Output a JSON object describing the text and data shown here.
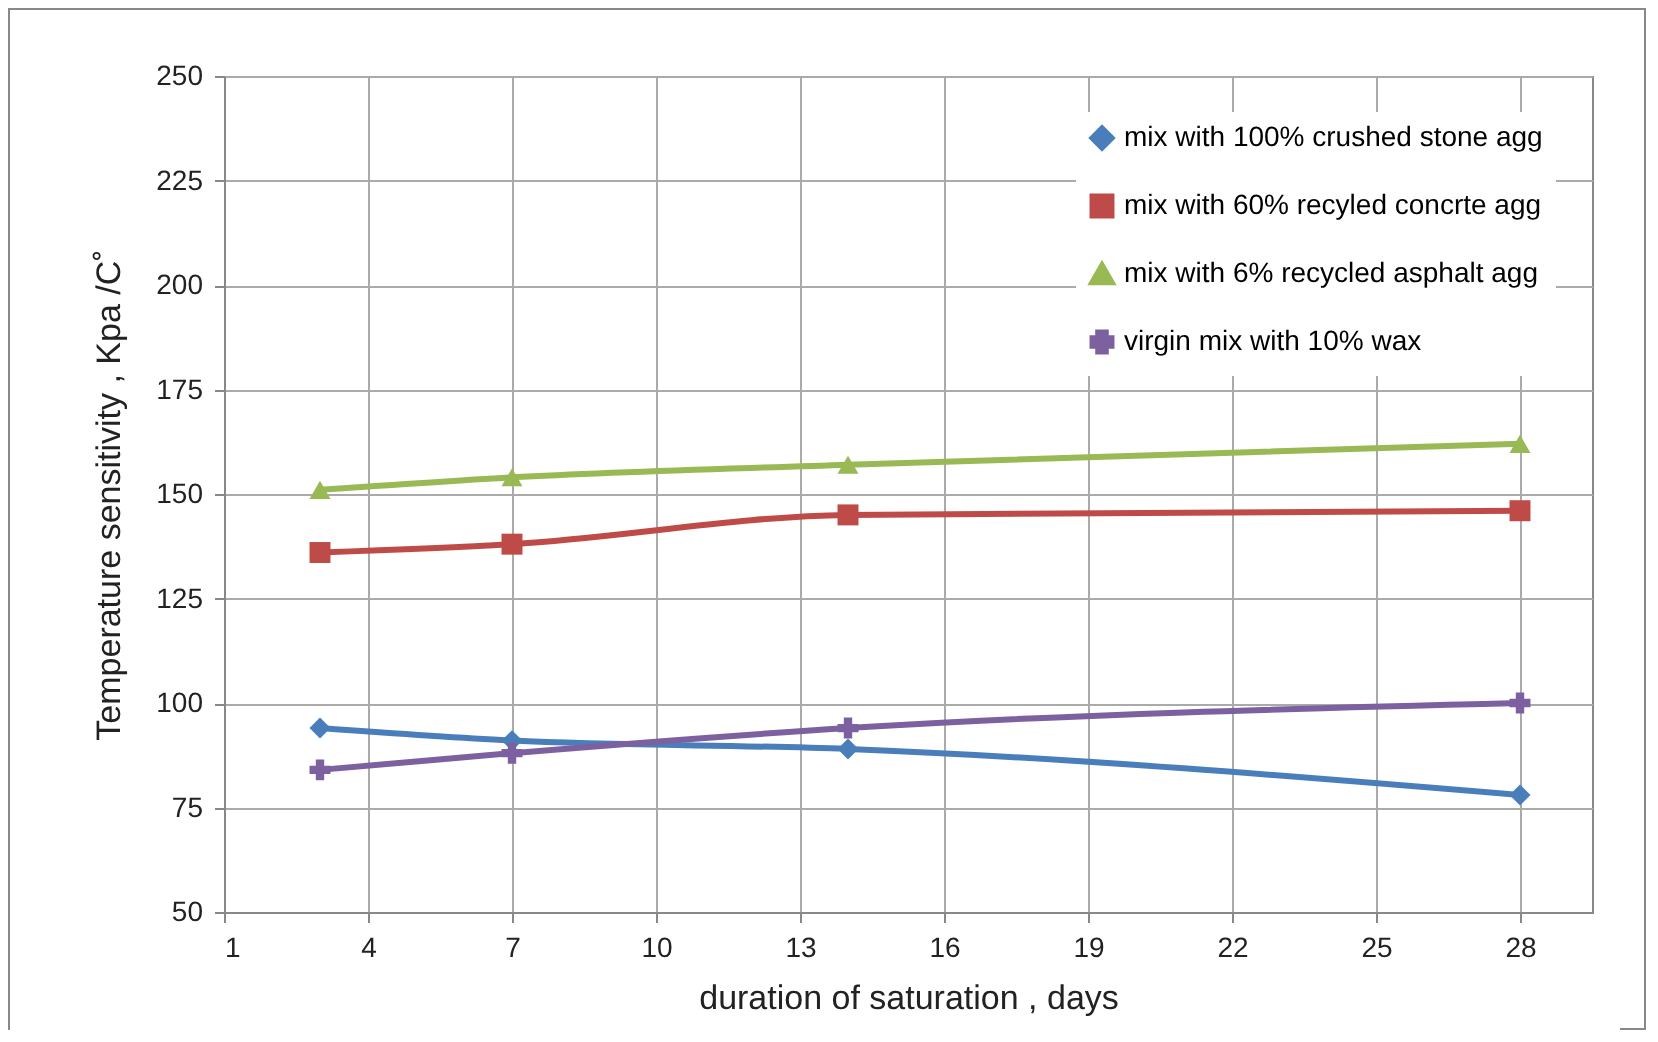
{
  "chart_data": {
    "type": "line",
    "xlabel": "duration of saturation , days",
    "ylabel": "Temperature sensitivity , Kpa /C˚",
    "x": [
      3,
      7,
      14,
      28
    ],
    "series": [
      {
        "name": "mix with 100% crushed stone agg",
        "color": "#4a7ebb",
        "marker": "diamond",
        "values": [
          94,
          91,
          89,
          78
        ]
      },
      {
        "name": "mix with 60% recyled concrte agg",
        "color": "#be4b48",
        "marker": "square",
        "values": [
          136,
          138,
          145,
          146
        ]
      },
      {
        "name": "mix with 6% recycled asphalt agg",
        "color": "#98b954",
        "marker": "triangle",
        "values": [
          151,
          154,
          157,
          162
        ]
      },
      {
        "name": "virgin mix with 10% wax",
        "color": "#7d60a0",
        "marker": "cross",
        "values": [
          84,
          88,
          94,
          100
        ]
      }
    ],
    "xlim": [
      1,
      29.5
    ],
    "xticks": [
      1,
      4,
      7,
      10,
      13,
      16,
      19,
      22,
      25,
      28
    ],
    "ylim": [
      50,
      250
    ],
    "yticks": [
      50,
      75,
      100,
      125,
      150,
      175,
      200,
      225,
      250
    ],
    "grid": true,
    "legend": "top right"
  }
}
